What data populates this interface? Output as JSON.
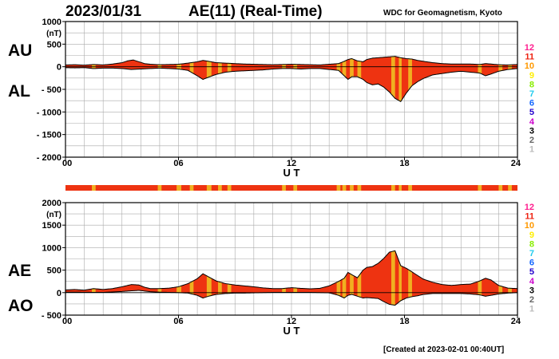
{
  "header": {
    "date": "2023/01/31",
    "title": "AE(11) (Real-Time)",
    "organization": "WDC for Geomagnetism, Kyoto",
    "created": "[Created at 2023-02-01 00:40UT]"
  },
  "station_legend": [
    "12",
    "11",
    "10",
    "9",
    "8",
    "7",
    "6",
    "5",
    "4",
    "3",
    "2",
    "1"
  ],
  "colors": {
    "fill_many_stations": "#ee3311",
    "fill_fewer_stations": "#f0b020",
    "line": "#000000",
    "grid": "#aaaaaa",
    "legend": [
      "#ff1f8f",
      "#ee2211",
      "#ff9900",
      "#ffee00",
      "#88ee00",
      "#22ccee",
      "#1166ff",
      "#2200cc",
      "#cc00cc",
      "#000000",
      "#666666",
      "#bbbbbb"
    ]
  },
  "chart_data": [
    {
      "type": "area",
      "panel": "AU/AL",
      "labels": {
        "upper": "AU",
        "lower": "AL"
      },
      "yunit": "(nT)",
      "ylim": [
        -2000,
        1000
      ],
      "yticks": [
        "1000",
        "500",
        "0",
        "- 500",
        "- 1000",
        "- 1500",
        "- 2000"
      ],
      "ytick_values": [
        1000,
        500,
        0,
        -500,
        -1000,
        -1500,
        -2000
      ],
      "xlim": [
        0,
        24
      ],
      "xticks": [
        "00",
        "06",
        "12",
        "18",
        "24"
      ],
      "xtick_values": [
        0,
        6,
        12,
        18,
        24
      ],
      "xlabel": "U T",
      "grid": true,
      "series": [
        {
          "name": "AU",
          "x": [
            0,
            0.5,
            1,
            1.5,
            2,
            2.5,
            3,
            3.3,
            3.6,
            3.9,
            4.2,
            4.5,
            5,
            5.5,
            6,
            6.5,
            7,
            7.3,
            7.6,
            8,
            8.5,
            9,
            9.5,
            10,
            10.5,
            11,
            11.5,
            12,
            12.5,
            13,
            13.5,
            14,
            14.5,
            14.8,
            15,
            15.2,
            15.5,
            15.8,
            16,
            16.3,
            16.6,
            16.9,
            17.2,
            17.5,
            17.8,
            18.1,
            18.4,
            18.7,
            19,
            19.5,
            20,
            20.5,
            21,
            21.5,
            22,
            22.3,
            22.6,
            23,
            23.5,
            24
          ],
          "values": [
            40,
            45,
            35,
            50,
            40,
            60,
            90,
            130,
            150,
            110,
            70,
            55,
            45,
            50,
            55,
            80,
            110,
            140,
            120,
            90,
            80,
            70,
            60,
            55,
            50,
            45,
            50,
            55,
            50,
            45,
            40,
            55,
            70,
            120,
            160,
            180,
            130,
            110,
            160,
            190,
            200,
            210,
            220,
            230,
            200,
            180,
            170,
            140,
            120,
            90,
            70,
            60,
            60,
            60,
            50,
            70,
            60,
            45,
            40,
            50
          ]
        },
        {
          "name": "AL",
          "x": [
            0,
            0.5,
            1,
            1.5,
            2,
            2.5,
            3,
            3.5,
            4,
            4.5,
            5,
            5.5,
            6,
            6.5,
            7,
            7.3,
            7.6,
            8,
            8.5,
            9,
            9.5,
            10,
            10.5,
            11,
            11.5,
            12,
            12.5,
            13,
            13.5,
            14,
            14.5,
            14.8,
            15,
            15.2,
            15.5,
            15.8,
            16,
            16.3,
            16.6,
            16.9,
            17.2,
            17.5,
            17.8,
            18.1,
            18.4,
            18.7,
            19,
            19.5,
            20,
            20.5,
            21,
            21.5,
            22,
            22.3,
            22.6,
            23,
            23.5,
            24
          ],
          "values": [
            -20,
            -25,
            -20,
            -40,
            -30,
            -30,
            -40,
            -60,
            -50,
            -40,
            -30,
            -40,
            -50,
            -80,
            -200,
            -280,
            -230,
            -170,
            -120,
            -100,
            -90,
            -80,
            -70,
            -50,
            -40,
            -40,
            -50,
            -40,
            -40,
            -60,
            -80,
            -200,
            -280,
            -220,
            -220,
            -280,
            -350,
            -400,
            -380,
            -450,
            -560,
            -700,
            -770,
            -580,
            -420,
            -330,
            -260,
            -180,
            -150,
            -120,
            -100,
            -120,
            -140,
            -200,
            -160,
            -100,
            -60,
            -40
          ]
        }
      ]
    },
    {
      "type": "area",
      "panel": "AE/AO",
      "labels": {
        "upper": "AE",
        "lower": "AO"
      },
      "yunit": "(nT)",
      "ylim": [
        -500,
        2000
      ],
      "yticks": [
        "2000",
        "1500",
        "1000",
        "500",
        "0",
        "- 500"
      ],
      "ytick_values": [
        2000,
        1500,
        1000,
        500,
        0,
        -500
      ],
      "xlim": [
        0,
        24
      ],
      "xticks": [
        "00",
        "06",
        "12",
        "18",
        "24"
      ],
      "xtick_values": [
        0,
        6,
        12,
        18,
        24
      ],
      "xlabel": "U T",
      "grid": true,
      "series": [
        {
          "name": "AE",
          "x": [
            0,
            0.5,
            1,
            1.5,
            2,
            2.5,
            3,
            3.5,
            3.9,
            4.2,
            4.5,
            5,
            5.5,
            6,
            6.5,
            7,
            7.3,
            7.6,
            8,
            8.5,
            9,
            9.5,
            10,
            10.5,
            11,
            11.5,
            12,
            12.5,
            13,
            13.5,
            14,
            14.5,
            14.8,
            15,
            15.2,
            15.5,
            15.8,
            16,
            16.3,
            16.6,
            16.9,
            17.2,
            17.5,
            17.8,
            18.1,
            18.4,
            18.7,
            19,
            19.5,
            20,
            20.5,
            21,
            21.5,
            22,
            22.3,
            22.6,
            23,
            23.5,
            24
          ],
          "values": [
            60,
            70,
            55,
            90,
            70,
            90,
            130,
            180,
            170,
            120,
            90,
            90,
            100,
            130,
            200,
            310,
            420,
            350,
            260,
            200,
            170,
            150,
            130,
            105,
            90,
            90,
            110,
            95,
            85,
            95,
            150,
            250,
            320,
            450,
            400,
            330,
            500,
            560,
            580,
            650,
            760,
            900,
            930,
            600,
            540,
            460,
            380,
            300,
            230,
            180,
            160,
            180,
            190,
            260,
            320,
            280,
            160,
            100,
            90
          ]
        },
        {
          "name": "AO",
          "x": [
            0,
            0.5,
            1,
            1.5,
            2,
            2.5,
            3,
            3.5,
            3.9,
            4.2,
            4.5,
            5,
            5.5,
            6,
            6.5,
            7,
            7.3,
            7.6,
            8,
            8.5,
            9,
            9.5,
            10,
            10.5,
            11,
            11.5,
            12,
            12.5,
            13,
            13.5,
            14,
            14.5,
            14.8,
            15,
            15.2,
            15.5,
            15.8,
            16,
            16.3,
            16.6,
            16.9,
            17.2,
            17.5,
            17.8,
            18.1,
            18.4,
            18.7,
            19,
            19.5,
            20,
            20.5,
            21,
            21.5,
            22,
            22.3,
            22.6,
            23,
            23.5,
            24
          ],
          "values": [
            10,
            10,
            8,
            5,
            5,
            15,
            25,
            40,
            50,
            35,
            20,
            10,
            5,
            0,
            -10,
            -60,
            -120,
            -80,
            -40,
            -20,
            -10,
            -10,
            -5,
            0,
            5,
            5,
            5,
            5,
            5,
            0,
            -5,
            -60,
            -120,
            -60,
            -40,
            -80,
            -120,
            -110,
            -120,
            -130,
            -200,
            -260,
            -280,
            -180,
            -120,
            -90,
            -70,
            -40,
            -20,
            -20,
            -20,
            -20,
            -30,
            -50,
            -80,
            -60,
            -30,
            -10,
            0
          ]
        }
      ]
    }
  ],
  "quality_strip": {
    "orange_segments_hours": [
      [
        1.4,
        1.6
      ],
      [
        4.9,
        5.1
      ],
      [
        5.9,
        6.15
      ],
      [
        6.6,
        6.8
      ],
      [
        7.5,
        7.75
      ],
      [
        8.1,
        8.3
      ],
      [
        8.6,
        8.8
      ],
      [
        11.5,
        11.7
      ],
      [
        12.1,
        12.3
      ],
      [
        14.4,
        14.6
      ],
      [
        14.7,
        14.9
      ],
      [
        15.1,
        15.3
      ],
      [
        15.5,
        15.7
      ],
      [
        17.3,
        17.5
      ],
      [
        17.7,
        17.85
      ],
      [
        18.2,
        18.4
      ],
      [
        21.9,
        22.1
      ],
      [
        23.0,
        23.2
      ],
      [
        23.5,
        23.7
      ]
    ]
  }
}
